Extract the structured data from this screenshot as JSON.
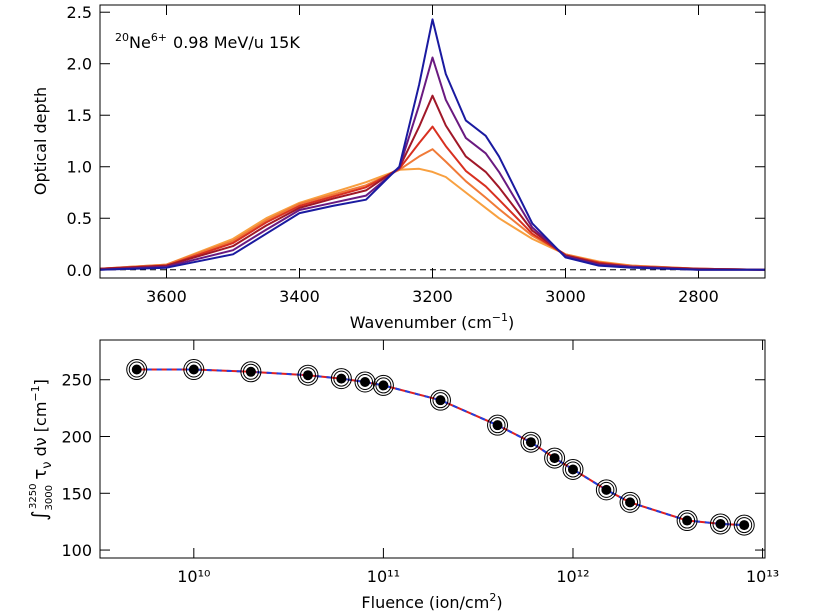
{
  "chart_data": [
    {
      "type": "line",
      "annotation": {
        "mass": "20",
        "ion": "Ne",
        "charge": "6+",
        "text": "0.98 MeV/u 15K"
      },
      "ylabel": "Optical depth",
      "xlabel": {
        "text": "Wavenumber (cm",
        "sup": "−1",
        "end": ")"
      },
      "x": [
        3700,
        3600,
        3500,
        3450,
        3400,
        3350,
        3300,
        3250,
        3220,
        3200,
        3180,
        3150,
        3120,
        3100,
        3050,
        3000,
        2950,
        2900,
        2800,
        2700
      ],
      "series": [
        {
          "color": "#f8a040",
          "values": [
            0.01,
            0.05,
            0.3,
            0.5,
            0.65,
            0.75,
            0.85,
            0.97,
            0.98,
            0.95,
            0.9,
            0.75,
            0.6,
            0.5,
            0.3,
            0.15,
            0.08,
            0.04,
            0.01,
            0
          ]
        },
        {
          "color": "#f07a38",
          "values": [
            0.01,
            0.05,
            0.28,
            0.48,
            0.64,
            0.73,
            0.82,
            0.97,
            1.1,
            1.17,
            1.05,
            0.86,
            0.7,
            0.59,
            0.33,
            0.15,
            0.07,
            0.04,
            0.01,
            0
          ]
        },
        {
          "color": "#d83020",
          "values": [
            0.01,
            0.04,
            0.26,
            0.46,
            0.62,
            0.71,
            0.8,
            0.98,
            1.23,
            1.39,
            1.2,
            0.96,
            0.81,
            0.68,
            0.35,
            0.14,
            0.07,
            0.03,
            0.01,
            0
          ]
        },
        {
          "color": "#a01828",
          "values": [
            0.01,
            0.04,
            0.23,
            0.43,
            0.6,
            0.69,
            0.77,
            0.99,
            1.39,
            1.69,
            1.4,
            1.1,
            0.95,
            0.8,
            0.38,
            0.14,
            0.06,
            0.03,
            0.01,
            0
          ]
        },
        {
          "color": "#6a1a80",
          "values": [
            0,
            0.03,
            0.19,
            0.39,
            0.58,
            0.65,
            0.72,
            0.99,
            1.6,
            2.06,
            1.65,
            1.28,
            1.13,
            0.95,
            0.41,
            0.13,
            0.05,
            0.03,
            0,
            0
          ]
        },
        {
          "color": "#1a1aa0",
          "values": [
            0,
            0.02,
            0.15,
            0.35,
            0.55,
            0.62,
            0.68,
            1.0,
            1.8,
            2.43,
            1.9,
            1.45,
            1.3,
            1.1,
            0.45,
            0.12,
            0.04,
            0.02,
            0,
            0
          ]
        }
      ],
      "baseline": 0,
      "xlim": [
        3700,
        2700
      ],
      "xticks": [
        3600,
        3400,
        3200,
        3000,
        2800
      ],
      "ylim": [
        -0.08,
        2.57
      ],
      "yticks": [
        {
          "value": 0,
          "label": "0.0"
        },
        0.5,
        {
          "value": 1,
          "label": "1.0"
        },
        1.5,
        {
          "value": 2,
          "label": "2.0"
        },
        2.5
      ]
    },
    {
      "type": "scatter",
      "ylabel": {
        "integral": "∫",
        "lower": "3000",
        "upper": "3250",
        "tau": "τ",
        "nu": "ν",
        "text": " dν [cm",
        "sup": "−1",
        "end": "]"
      },
      "xlabel": {
        "text": "Fluence (ion/cm",
        "sup": "2",
        "end": ")"
      },
      "log_x": true,
      "x": [
        5000000000,
        10000000000,
        20000000000,
        40000000000,
        60000000000,
        80000000000,
        100000000000,
        200000000000,
        400000000000,
        600000000000,
        800000000000,
        1000000000000,
        1500000000000,
        2000000000000,
        4000000000000,
        6000000000000,
        8000000000000
      ],
      "values": [
        259,
        259,
        257,
        254,
        251,
        248,
        245,
        232,
        210,
        195,
        181,
        171,
        153,
        142,
        126,
        123,
        122
      ],
      "color": "#000000",
      "fit": {
        "color": "#e02020",
        "dash_color": "#2040e0",
        "values": [
          259,
          259,
          257,
          254,
          251,
          248,
          245,
          232,
          210,
          195,
          181,
          171,
          153,
          142,
          126,
          123,
          122
        ]
      },
      "xlim": [
        3200000000,
        10300000000000
      ],
      "xticks": [
        {
          "value": 10000000000,
          "label": "10¹⁰"
        },
        {
          "value": 100000000000,
          "label": "10¹¹"
        },
        {
          "value": 1000000000000,
          "label": "10¹²"
        },
        {
          "value": 10000000000000,
          "label": "10¹³"
        }
      ],
      "ylim": [
        93,
        285
      ],
      "yticks": [
        100,
        150,
        200,
        250
      ]
    }
  ]
}
